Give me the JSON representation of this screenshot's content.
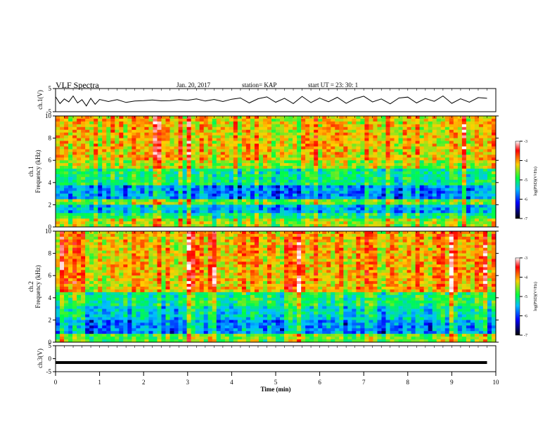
{
  "header": {
    "title": "VLF Spectra",
    "date": "Jan. 20, 2017",
    "station": "station= KAP",
    "start": "start  UT =   23: 30: 1"
  },
  "chart_data": [
    {
      "type": "line",
      "panel": "ch1-waveform",
      "ylabel": "ch.1(V)",
      "ylim": [
        -5,
        5
      ],
      "yticks": [
        5,
        -5
      ],
      "xlim": [
        0,
        10
      ],
      "series": [
        {
          "x": [
            0,
            0.1,
            0.2,
            0.3,
            0.4,
            0.5,
            0.6,
            0.7,
            0.8,
            0.9,
            1.0,
            1.2,
            1.4,
            1.6,
            1.8,
            2.0,
            2.2,
            2.4,
            2.6,
            2.8,
            3.0,
            3.2,
            3.4,
            3.6,
            3.8,
            4.0,
            4.2,
            4.4,
            4.6,
            4.8,
            5.0,
            5.2,
            5.4,
            5.6,
            5.8,
            6.0,
            6.2,
            6.4,
            6.6,
            6.8,
            7.0,
            7.2,
            7.4,
            7.6,
            7.8,
            8.0,
            8.2,
            8.4,
            8.6,
            8.8,
            9.0,
            9.2,
            9.4,
            9.6,
            9.8
          ],
          "values": [
            1.5,
            -1.5,
            0.5,
            -0.8,
            1.8,
            -1.2,
            0.2,
            -2.5,
            0.8,
            -1.8,
            0.3,
            -0.6,
            0.2,
            -1.0,
            -0.4,
            -0.2,
            0.1,
            -0.3,
            -0.2,
            0.2,
            -0.1,
            0.5,
            -0.4,
            0.3,
            -0.6,
            0.4,
            0.9,
            -1.2,
            0.6,
            1.4,
            -0.9,
            0.8,
            -1.5,
            1.6,
            -1.1,
            0.9,
            -0.7,
            1.2,
            -1.4,
            0.6,
            1.7,
            -0.8,
            0.5,
            -1.6,
            0.9,
            1.3,
            -1.2,
            0.7,
            -0.5,
            1.8,
            -1.4,
            0.6,
            -0.9,
            1.1,
            0.8
          ]
        }
      ]
    },
    {
      "type": "heatmap",
      "panel": "ch1-spectrogram",
      "ylabel": "ch.1\nFrequency (kHz)",
      "ylim": [
        0,
        10
      ],
      "yticks": [
        0,
        2,
        4,
        6,
        8,
        10
      ],
      "xlim": [
        0,
        10
      ],
      "colorbar": {
        "label": "log(PSD)(V²/Hz)",
        "ticks": [
          -3,
          -4,
          -5,
          -6,
          -7
        ],
        "range": [
          -7,
          -3
        ]
      },
      "bands_khz_log_psd": [
        {
          "from": 0.0,
          "to": 0.8,
          "value": -4.6
        },
        {
          "from": 0.8,
          "to": 1.2,
          "value": -5.2
        },
        {
          "from": 1.2,
          "to": 2.0,
          "value": -5.8
        },
        {
          "from": 2.0,
          "to": 2.4,
          "value": -4.8
        },
        {
          "from": 2.4,
          "to": 3.8,
          "value": -6.0
        },
        {
          "from": 3.8,
          "to": 5.2,
          "value": -5.3
        },
        {
          "from": 5.2,
          "to": 6.0,
          "value": -4.6
        },
        {
          "from": 6.0,
          "to": 10.0,
          "value": -4.3
        }
      ]
    },
    {
      "type": "heatmap",
      "panel": "ch2-spectrogram",
      "ylabel": "ch.2\nFrequency (kHz)",
      "ylim": [
        0,
        10
      ],
      "yticks": [
        0,
        2,
        4,
        6,
        8,
        10
      ],
      "xlim": [
        0,
        10
      ],
      "colorbar": {
        "label": "log(PSD)(V²/Hz)",
        "ticks": [
          -3,
          -4,
          -5,
          -6,
          -7
        ],
        "range": [
          -7,
          -3
        ]
      },
      "bands_khz_log_psd": [
        {
          "from": 0.0,
          "to": 0.8,
          "value": -4.8
        },
        {
          "from": 0.8,
          "to": 2.0,
          "value": -6.0
        },
        {
          "from": 2.0,
          "to": 3.2,
          "value": -5.6
        },
        {
          "from": 3.2,
          "to": 4.4,
          "value": -5.2
        },
        {
          "from": 4.4,
          "to": 10.0,
          "value": -4.2
        }
      ]
    },
    {
      "type": "line",
      "panel": "ch3-waveform",
      "ylabel": "ch.3(V)",
      "ylim": [
        -5,
        5
      ],
      "yticks": [
        5,
        0,
        -5
      ],
      "xlim": [
        0,
        10
      ],
      "xlabel": "Time (min)",
      "xticks": [
        0,
        1,
        2,
        3,
        4,
        5,
        6,
        7,
        8,
        9,
        10
      ],
      "series": [
        {
          "x": [
            0,
            9.8
          ],
          "values": [
            -1.5,
            -1.5
          ]
        }
      ]
    }
  ]
}
